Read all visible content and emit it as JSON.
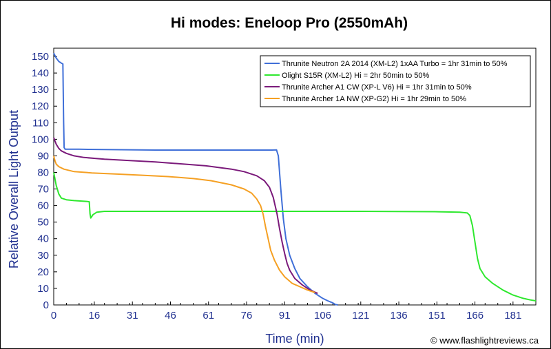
{
  "chart_data": {
    "type": "line",
    "title": "Hi modes: Eneloop Pro (2550mAh)",
    "xlabel": "Time (min)",
    "ylabel": "Relative Overall Light Output",
    "credit": "© www.flashlightreviews.ca",
    "xlim": [
      0,
      190
    ],
    "ylim": [
      0,
      155
    ],
    "x_ticks": [
      0,
      16,
      31,
      46,
      61,
      76,
      91,
      106,
      121,
      136,
      151,
      166,
      181
    ],
    "y_ticks": [
      0,
      10,
      20,
      30,
      40,
      50,
      60,
      70,
      80,
      90,
      100,
      110,
      120,
      130,
      140,
      150
    ],
    "grid": false,
    "legend_position": "top-right",
    "series": [
      {
        "name": "Thrunite Neutron 2A 2014 (XM-L2) 1xAA Turbo = 1hr 31min to 50%",
        "color": "#3f6fd8",
        "points": [
          [
            0,
            152
          ],
          [
            1,
            149
          ],
          [
            2,
            147
          ],
          [
            3,
            146
          ],
          [
            3.6,
            145.5
          ],
          [
            3.9,
            110
          ],
          [
            4.1,
            95
          ],
          [
            4.5,
            94
          ],
          [
            10,
            94
          ],
          [
            20,
            93.8
          ],
          [
            40,
            93.5
          ],
          [
            60,
            93.5
          ],
          [
            80,
            93.5
          ],
          [
            86,
            93.5
          ],
          [
            87.8,
            93.6
          ],
          [
            88.5,
            90
          ],
          [
            89.5,
            70
          ],
          [
            90.5,
            52
          ],
          [
            91.5,
            40
          ],
          [
            93,
            30
          ],
          [
            95,
            22
          ],
          [
            97,
            16
          ],
          [
            100,
            11
          ],
          [
            103,
            7
          ],
          [
            106,
            4
          ],
          [
            108,
            2.5
          ],
          [
            110,
            1.2
          ],
          [
            111,
            0.3
          ],
          [
            112,
            0
          ]
        ]
      },
      {
        "name": "Olight S15R (XM-L2) Hi = 2hr 50min to 50%",
        "color": "#2ee82e",
        "points": [
          [
            0,
            80
          ],
          [
            1,
            72
          ],
          [
            2,
            67
          ],
          [
            3,
            64.5
          ],
          [
            5,
            63.5
          ],
          [
            8,
            63
          ],
          [
            11,
            62.7
          ],
          [
            13,
            62.5
          ],
          [
            14,
            62.3
          ],
          [
            14.3,
            55
          ],
          [
            14.6,
            52.5
          ],
          [
            15.5,
            54.5
          ],
          [
            17,
            56
          ],
          [
            20,
            56.5
          ],
          [
            40,
            56.5
          ],
          [
            80,
            56.5
          ],
          [
            120,
            56.5
          ],
          [
            150,
            56.3
          ],
          [
            160,
            56
          ],
          [
            163,
            55.5
          ],
          [
            164,
            54
          ],
          [
            165,
            48
          ],
          [
            166,
            38
          ],
          [
            167,
            28
          ],
          [
            168,
            22
          ],
          [
            170,
            17
          ],
          [
            173,
            13
          ],
          [
            177,
            9
          ],
          [
            181,
            6
          ],
          [
            185,
            4
          ],
          [
            188,
            3
          ],
          [
            190,
            2.5
          ]
        ]
      },
      {
        "name": "Thrunite Archer A1 CW (XP-L V6) Hi = 1hr 31min to 50%",
        "color": "#7b1a7b",
        "points": [
          [
            0,
            101
          ],
          [
            0.5,
            99
          ],
          [
            1,
            97
          ],
          [
            2,
            94.5
          ],
          [
            3,
            93
          ],
          [
            5,
            91.5
          ],
          [
            8,
            90
          ],
          [
            12,
            89
          ],
          [
            20,
            88
          ],
          [
            30,
            87.2
          ],
          [
            40,
            86.3
          ],
          [
            50,
            85.2
          ],
          [
            60,
            84
          ],
          [
            70,
            82
          ],
          [
            75,
            80.5
          ],
          [
            80,
            78
          ],
          [
            83,
            75
          ],
          [
            85,
            71
          ],
          [
            86.5,
            65
          ],
          [
            88,
            55
          ],
          [
            89,
            46
          ],
          [
            90,
            38
          ],
          [
            91,
            31
          ],
          [
            92,
            25
          ],
          [
            93,
            21
          ],
          [
            95,
            16
          ],
          [
            98,
            12
          ],
          [
            101,
            9
          ],
          [
            104,
            7
          ]
        ]
      },
      {
        "name": "Thrunite Archer 1A NW (XP-G2) Hi = 1hr 29min to 50%",
        "color": "#f5a023",
        "points": [
          [
            0,
            90
          ],
          [
            0.5,
            87
          ],
          [
            1,
            85
          ],
          [
            2,
            83.5
          ],
          [
            4,
            82
          ],
          [
            8,
            80.5
          ],
          [
            15,
            79.7
          ],
          [
            25,
            79
          ],
          [
            35,
            78.3
          ],
          [
            45,
            77.5
          ],
          [
            55,
            76.3
          ],
          [
            62,
            75
          ],
          [
            70,
            72.5
          ],
          [
            75,
            70
          ],
          [
            78,
            67.5
          ],
          [
            80,
            64
          ],
          [
            81.5,
            60
          ],
          [
            82.5,
            55
          ],
          [
            83.5,
            47
          ],
          [
            84.5,
            40
          ],
          [
            85.5,
            33
          ],
          [
            87,
            27
          ],
          [
            89,
            21
          ],
          [
            91,
            17
          ],
          [
            94,
            13
          ],
          [
            97,
            11
          ],
          [
            100,
            9
          ],
          [
            103,
            7.5
          ]
        ]
      }
    ]
  }
}
